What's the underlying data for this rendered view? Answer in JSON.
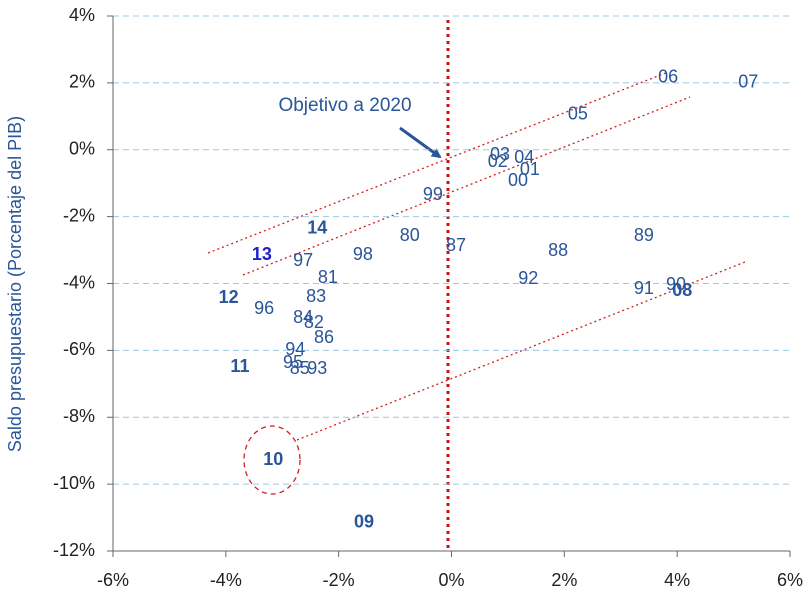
{
  "chart_data": {
    "type": "scatter",
    "y_label": "Saldo presupuestario (Porcentaje del PIB)",
    "annotation": "Objetivo a 2020",
    "color": "#2a5599",
    "grid": true,
    "xlim": [
      -6,
      6
    ],
    "ylim": [
      -12,
      4
    ],
    "xticks": [
      {
        "value": -6,
        "label": "-6%"
      },
      {
        "value": -4,
        "label": "-4%"
      },
      {
        "value": -2,
        "label": "-2%"
      },
      {
        "value": 0,
        "label": "0%"
      },
      {
        "value": 2,
        "label": "2%"
      },
      {
        "value": 4,
        "label": "4%"
      },
      {
        "value": 6,
        "label": "6%"
      }
    ],
    "yticks": [
      {
        "value": 4,
        "label": "4%"
      },
      {
        "value": 2,
        "label": "2%"
      },
      {
        "value": 0,
        "label": "0%"
      },
      {
        "value": -2,
        "label": "-2%"
      },
      {
        "value": -4,
        "label": "-4%"
      },
      {
        "value": -6,
        "label": "-6%"
      },
      {
        "value": -8,
        "label": "-8%"
      },
      {
        "value": -10,
        "label": "-10%"
      },
      {
        "value": -12,
        "label": "-12%"
      }
    ],
    "points": [
      {
        "label": "07",
        "x": 5.26,
        "y": 2.0
      },
      {
        "label": "06",
        "x": 3.84,
        "y": 2.15
      },
      {
        "label": "05",
        "x": 2.24,
        "y": 1.04
      },
      {
        "label": "03",
        "x": 0.86,
        "y": -0.16
      },
      {
        "label": "04",
        "x": 1.29,
        "y": -0.25
      },
      {
        "label": "02",
        "x": 0.82,
        "y": -0.37
      },
      {
        "label": "01",
        "x": 1.39,
        "y": -0.61
      },
      {
        "label": "00",
        "x": 1.18,
        "y": -0.94
      },
      {
        "label": "99",
        "x": -0.33,
        "y": -1.36
      },
      {
        "label": "80",
        "x": -0.74,
        "y": -2.58
      },
      {
        "label": "87",
        "x": 0.08,
        "y": -2.88
      },
      {
        "label": "88",
        "x": 1.89,
        "y": -3.03
      },
      {
        "label": "89",
        "x": 3.41,
        "y": -2.58
      },
      {
        "label": "92",
        "x": 1.36,
        "y": -3.87
      },
      {
        "label": "91",
        "x": 3.41,
        "y": -4.17
      },
      {
        "label": "90",
        "x": 3.98,
        "y": -4.05
      },
      {
        "label": "08",
        "x": 4.09,
        "y": -4.23,
        "bold": true
      },
      {
        "label": "14",
        "x": -2.38,
        "y": -2.37,
        "bold": true
      },
      {
        "label": "13",
        "x": -3.36,
        "y": -3.15,
        "bold": true,
        "color": "#1f1fd0"
      },
      {
        "label": "97",
        "x": -2.63,
        "y": -3.33
      },
      {
        "label": "98",
        "x": -1.57,
        "y": -3.15
      },
      {
        "label": "81",
        "x": -2.19,
        "y": -3.84
      },
      {
        "label": "83",
        "x": -2.4,
        "y": -4.41
      },
      {
        "label": "12",
        "x": -3.95,
        "y": -4.44,
        "bold": true
      },
      {
        "label": "96",
        "x": -3.32,
        "y": -4.77
      },
      {
        "label": "84",
        "x": -2.63,
        "y": -5.04
      },
      {
        "label": "82",
        "x": -2.44,
        "y": -5.19
      },
      {
        "label": "86",
        "x": -2.26,
        "y": -5.64
      },
      {
        "label": "94",
        "x": -2.77,
        "y": -6.0
      },
      {
        "label": "95",
        "x": -2.81,
        "y": -6.38
      },
      {
        "label": "85",
        "x": -2.69,
        "y": -6.56
      },
      {
        "label": "93",
        "x": -2.38,
        "y": -6.56
      },
      {
        "label": "11",
        "x": -3.75,
        "y": -6.5,
        "bold": true
      },
      {
        "label": "10",
        "x": -3.16,
        "y": -9.29,
        "bold": true
      },
      {
        "label": "09",
        "x": -1.55,
        "y": -11.15,
        "bold": true
      }
    ]
  }
}
